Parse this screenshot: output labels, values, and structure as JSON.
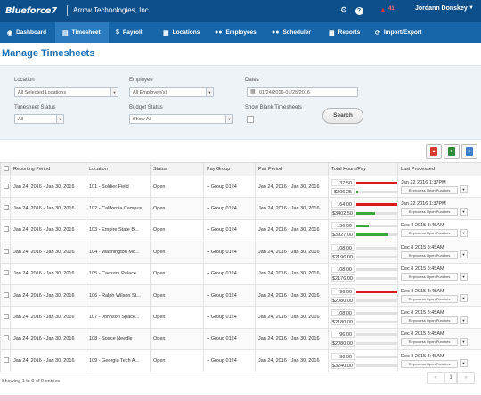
{
  "topbar": {
    "logo": "Blueforce7",
    "company": "Arrow Technologies, Inc",
    "alert_count": "41",
    "user_name": "Jordann Donskey",
    "icons": [
      "gear-icon",
      "help-icon",
      "alert-icon"
    ]
  },
  "nav": [
    {
      "label": "Dashboard",
      "icon": "dashboard-icon"
    },
    {
      "label": "Timesheet",
      "icon": "timesheet-icon"
    },
    {
      "label": "Payroll",
      "icon": "dollar-icon"
    },
    {
      "label": "Locations",
      "icon": "locations-icon"
    },
    {
      "label": "Employees",
      "icon": "employees-icon"
    },
    {
      "label": "Scheduler",
      "icon": "scheduler-icon"
    },
    {
      "label": "Reports",
      "icon": "reports-icon"
    },
    {
      "label": "Import/Export",
      "icon": "import-export-icon"
    }
  ],
  "page_title": "Manage Timesheets",
  "filters": {
    "location_label": "Location",
    "location_value": "All Selected Locations",
    "employee_label": "Employee",
    "employee_value": "All Employee(s)",
    "dates_label": "Dates",
    "dates_value": "01/24/2016-01/25/2016",
    "status_label": "Timesheet Status",
    "status_value": "All",
    "budget_label": "Budget Status",
    "budget_value": "Show All",
    "blank_label": "Show Blank Timesheets",
    "search_label": "Search"
  },
  "table": {
    "headers": [
      "Reporting Period",
      "Location",
      "Status",
      "Pay Group",
      "Pay Period",
      "Total Hours/Pay",
      "Last Processed"
    ],
    "rows": [
      {
        "reporting": "Jan 24, 2016 - Jan 30, 2016",
        "location": "101 - Soldier Field",
        "status": "Open",
        "paygroup": "+ Group 0124",
        "payperiod": "Jan 24, 2016 - Jan 30, 2016",
        "hours": "37.50",
        "pay": "$206.25",
        "hours_fill": 1.0,
        "hours_color": "#d9191f",
        "pay_fill": 0.04,
        "pay_color": "#3aa83a",
        "last": "Jan 22 2016 1:37PM",
        "action": "Reprocess Open Punches"
      },
      {
        "reporting": "Jan 24, 2016 - Jan 30, 2016",
        "location": "102 - California Campus",
        "status": "Open",
        "paygroup": "+ Group 0124",
        "payperiod": "Jan 24, 2016 - Jan 30, 2016",
        "hours": "164.00",
        "pay": "$3402.50",
        "hours_fill": 1.0,
        "hours_color": "#d9191f",
        "pay_fill": 0.45,
        "pay_color": "#3aa83a",
        "last": "Jan 22 2016 1:37PM",
        "action": "Reprocess Open Punches"
      },
      {
        "reporting": "Jan 24, 2016 - Jan 30, 2016",
        "location": "103 - Empire State B...",
        "status": "Open",
        "paygroup": "+ Group 0124",
        "payperiod": "Jan 24, 2016 - Jan 30, 2016",
        "hours": "156.00",
        "pay": "$3927.00",
        "hours_fill": 0.3,
        "hours_color": "#3aa83a",
        "pay_fill": 0.78,
        "pay_color": "#3aa83a",
        "last": "Dec 8 2015 8:45AM",
        "action": "Reprocess Open Punches"
      },
      {
        "reporting": "Jan 24, 2016 - Jan 30, 2016",
        "location": "104 - Washington Mo...",
        "status": "Open",
        "paygroup": "+ Group 0124",
        "payperiod": "Jan 24, 2016 - Jan 30, 2016",
        "hours": "108.00",
        "pay": "$2196.00",
        "hours_fill": 0,
        "hours_color": "#3aa83a",
        "pay_fill": 0,
        "pay_color": "#3aa83a",
        "last": "Dec 8 2015 8:45AM",
        "action": "Reprocess Open Punches"
      },
      {
        "reporting": "Jan 24, 2016 - Jan 30, 2016",
        "location": "105 - Caesars Palace",
        "status": "Open",
        "paygroup": "+ Group 0124",
        "payperiod": "Jan 24, 2016 - Jan 30, 2016",
        "hours": "108.00",
        "pay": "$2176.00",
        "hours_fill": 0,
        "hours_color": "#3aa83a",
        "pay_fill": 0,
        "pay_color": "#3aa83a",
        "last": "Dec 8 2015 8:45AM",
        "action": "Reprocess Open Punches"
      },
      {
        "reporting": "Jan 24, 2016 - Jan 30, 2016",
        "location": "106 - Ralph Wilson St...",
        "status": "Open",
        "paygroup": "+ Group 0124",
        "payperiod": "Jan 24, 2016 - Jan 30, 2016",
        "hours": "96.00",
        "pay": "$2080.00",
        "hours_fill": 1.0,
        "hours_color": "#d9191f",
        "pay_fill": 0,
        "pay_color": "#3aa83a",
        "last": "Dec 8 2015 8:45AM",
        "action": "Reprocess Open Punches"
      },
      {
        "reporting": "Jan 24, 2016 - Jan 30, 2016",
        "location": "107 - Johnson Space...",
        "status": "Open",
        "paygroup": "+ Group 0124",
        "payperiod": "Jan 24, 2016 - Jan 30, 2016",
        "hours": "108.00",
        "pay": "$2180.00",
        "hours_fill": 0,
        "hours_color": "#3aa83a",
        "pay_fill": 0,
        "pay_color": "#3aa83a",
        "last": "Dec 8 2015 8:45AM",
        "action": "Reprocess Open Punches"
      },
      {
        "reporting": "Jan 24, 2016 - Jan 30, 2016",
        "location": "108 - Space Needle",
        "status": "Open",
        "paygroup": "+ Group 0124",
        "payperiod": "Jan 24, 2016 - Jan 30, 2016",
        "hours": "96.00",
        "pay": "$2080.00",
        "hours_fill": 0,
        "hours_color": "#3aa83a",
        "pay_fill": 0,
        "pay_color": "#3aa83a",
        "last": "Dec 8 2015 8:45AM",
        "action": "Reprocess Open Punches"
      },
      {
        "reporting": "Jan 24, 2016 - Jan 30, 2016",
        "location": "109 - Georgia Tech A...",
        "status": "Open",
        "paygroup": "+ Group 0124",
        "payperiod": "Jan 24, 2016 - Jan 30, 2016",
        "hours": "96.00",
        "pay": "$3240.00",
        "hours_fill": 0,
        "hours_color": "#3aa83a",
        "pay_fill": 0,
        "pay_color": "#3aa83a",
        "last": "Dec 8 2015 8:45AM",
        "action": "Reprocess Open Punches"
      }
    ]
  },
  "export_icons": [
    "pdf-icon",
    "excel-icon",
    "csv-icon"
  ],
  "footer": {
    "info": "Showing 1 to 9 of 9 entries",
    "prev": "«",
    "page": "1",
    "next": "»"
  }
}
